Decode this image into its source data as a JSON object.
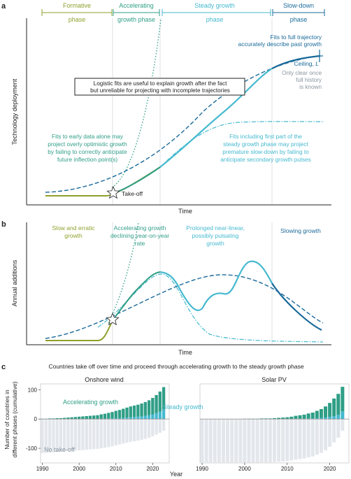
{
  "panels": {
    "a": "a",
    "b": "b",
    "c": "c"
  },
  "colors": {
    "formative": "#8fa02c",
    "accelerating": "#2f9e86",
    "steady": "#45b9cf",
    "slowdown": "#1a6a9a",
    "nontakeoff": "#e3e7ec",
    "axis": "#222222",
    "divider": "#c9d0d6"
  },
  "panel_a": {
    "phases": [
      {
        "line1": "Formative",
        "line2": "phase"
      },
      {
        "line1": "Accelerating",
        "line2": "growth phase"
      },
      {
        "line1": "Steady growth",
        "line2": "phase"
      },
      {
        "line1": "Slow-down",
        "line2": "phase"
      }
    ],
    "ylabel": "Technology deployment",
    "xlabel": "Time",
    "box_text": [
      "Logistic fits are useful to explain growth after the fact",
      "but unreliable for projecting with incomplete trajectories"
    ],
    "fit_full": [
      "Fits to full trajectory",
      "accurately describe past growth"
    ],
    "ceiling": "Ceiling, ",
    "ceiling_var": "L",
    "ceiling_note": [
      "Only clear once",
      "full history",
      "is known"
    ],
    "early_fit": [
      "Fits to early data alone may",
      "project overly optimistic growth",
      "by failing to correctly anticipate",
      "future inflection point(s)"
    ],
    "steady_fit": [
      "Fits including first part of the",
      "steady growth phase may project",
      "premature slow-down by failing to",
      "anticipate secondary growth pulses"
    ],
    "takeoff": "Take-off"
  },
  "panel_b": {
    "ylabel": "Annual additions",
    "xlabel": "Time",
    "phase_labels": [
      [
        "Slow and erratic",
        "growth"
      ],
      [
        "Accelerating growth",
        "declining year-on-year",
        "rate"
      ],
      [
        "Prolonged near-linear,",
        "possibly pulsating",
        "growth"
      ],
      [
        "Slowing growth"
      ]
    ]
  },
  "panel_c": {
    "title": "Countries take off over time and proceed through accelerating growth to the steady growth phase",
    "ylabel": [
      "Number of countries in",
      "different phases (cumulative)"
    ],
    "xlabel": "Year",
    "accelerating_label": "Accelerating growth",
    "steady_label": "Steady growth",
    "no_takeoff_label": "No take-off"
  },
  "chart_data": [
    {
      "type": "line",
      "panel": "a",
      "xlabel": "Time",
      "ylabel": "Technology deployment",
      "series": [
        {
          "name": "Formative phase"
        },
        {
          "name": "Accelerating growth phase"
        },
        {
          "name": "Steady growth phase"
        },
        {
          "name": "Slow-down phase"
        }
      ]
    },
    {
      "type": "line",
      "panel": "b",
      "xlabel": "Time",
      "ylabel": "Annual additions"
    },
    {
      "type": "bar",
      "panel": "c",
      "title": "Countries take off over time and proceed through accelerating growth to the steady growth phase",
      "xlabel": "Year",
      "ylabel": "Number of countries in different phases (cumulative)",
      "ylim": [
        -150,
        120
      ],
      "yticks": [
        100,
        0,
        -100
      ],
      "subplots": [
        {
          "name": "Onshore wind",
          "xticks": [
            1990,
            2000,
            2010,
            2020
          ],
          "years": [
            1990,
            1991,
            1992,
            1993,
            1994,
            1995,
            1996,
            1997,
            1998,
            1999,
            2000,
            2001,
            2002,
            2003,
            2004,
            2005,
            2006,
            2007,
            2008,
            2009,
            2010,
            2011,
            2012,
            2013,
            2014,
            2015,
            2016,
            2017,
            2018,
            2019,
            2020,
            2021,
            2022,
            2023
          ],
          "series": [
            {
              "name": "Accelerating growth",
              "values": [
                1,
                1,
                2,
                2,
                3,
                3,
                4,
                5,
                6,
                7,
                8,
                9,
                10,
                11,
                12,
                13,
                15,
                17,
                19,
                22,
                25,
                28,
                31,
                34,
                37,
                39,
                41,
                44,
                47,
                51,
                56,
                62,
                69,
                76
              ]
            },
            {
              "name": "Steady growth",
              "values": [
                0,
                0,
                0,
                0,
                0,
                0,
                0,
                0,
                0,
                0,
                0,
                0,
                0,
                0,
                0,
                0,
                1,
                1,
                2,
                2,
                3,
                3,
                4,
                5,
                6,
                7,
                8,
                9,
                11,
                13,
                16,
                20,
                25,
                33
              ]
            },
            {
              "name": "No take-off",
              "values": [
                -117,
                -116,
                -115,
                -114,
                -113,
                -112,
                -111,
                -110,
                -109,
                -108,
                -107,
                -106,
                -105,
                -104,
                -103,
                -102,
                -100,
                -98,
                -96,
                -93,
                -90,
                -87,
                -84,
                -81,
                -78,
                -76,
                -74,
                -71,
                -68,
                -64,
                -59,
                -53,
                -47,
                -40
              ]
            }
          ]
        },
        {
          "name": "Solar PV",
          "xticks": [
            1990,
            2000,
            2010,
            2020
          ],
          "years": [
            1990,
            1991,
            1992,
            1993,
            1994,
            1995,
            1996,
            1997,
            1998,
            1999,
            2000,
            2001,
            2002,
            2003,
            2004,
            2005,
            2006,
            2007,
            2008,
            2009,
            2010,
            2011,
            2012,
            2013,
            2014,
            2015,
            2016,
            2017,
            2018,
            2019,
            2020,
            2021,
            2022,
            2023
          ],
          "series": [
            {
              "name": "Accelerating growth",
              "values": [
                0,
                0,
                0,
                0,
                0,
                0,
                0,
                0,
                0,
                0,
                1,
                1,
                1,
                1,
                2,
                2,
                2,
                3,
                4,
                5,
                6,
                8,
                10,
                12,
                14,
                17,
                20,
                25,
                30,
                38,
                48,
                60,
                72,
                84
              ]
            },
            {
              "name": "Steady growth",
              "values": [
                0,
                0,
                0,
                0,
                0,
                0,
                0,
                0,
                0,
                0,
                0,
                0,
                0,
                0,
                0,
                0,
                0,
                0,
                0,
                0,
                0,
                0,
                1,
                1,
                1,
                2,
                2,
                3,
                4,
                5,
                7,
                10,
                14,
                26
              ]
            },
            {
              "name": "No take-off",
              "values": [
                -150,
                -150,
                -150,
                -150,
                -150,
                -150,
                -150,
                -150,
                -150,
                -150,
                -149,
                -149,
                -149,
                -149,
                -148,
                -148,
                -148,
                -147,
                -146,
                -145,
                -144,
                -142,
                -139,
                -137,
                -135,
                -131,
                -128,
                -122,
                -116,
                -107,
                -95,
                -80,
                -64,
                -40
              ]
            }
          ]
        }
      ]
    }
  ]
}
